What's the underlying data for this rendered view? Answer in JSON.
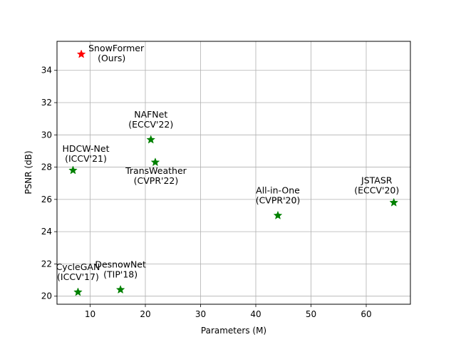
{
  "chart_data": {
    "type": "scatter",
    "title": "",
    "xlabel": "Parameters (M)",
    "ylabel": "PSNR (dB)",
    "xlim": [
      4,
      68
    ],
    "ylim": [
      19.5,
      35.8
    ],
    "xticks": [
      10,
      20,
      30,
      40,
      50,
      60
    ],
    "yticks": [
      20,
      22,
      24,
      26,
      28,
      30,
      32,
      34
    ],
    "grid": true,
    "marker": "star",
    "points": [
      {
        "x": 8.4,
        "y": 35.0,
        "lines": [
          "SnowFormer",
          "(Ours)"
        ],
        "color": "#ff0000",
        "label_pos": "right"
      },
      {
        "x": 21.0,
        "y": 29.7,
        "lines": [
          "NAFNet",
          "(ECCV'22)"
        ],
        "color": "#008000",
        "label_pos": "above"
      },
      {
        "x": 6.9,
        "y": 27.8,
        "lines": [
          "HDCW-Net",
          "(ICCV'21)"
        ],
        "color": "#008000",
        "label_pos": "above-right"
      },
      {
        "x": 21.8,
        "y": 28.3,
        "lines": [
          "TransWeather",
          "(CVPR'22)"
        ],
        "color": "#008000",
        "label_pos": "below"
      },
      {
        "x": 44.0,
        "y": 25.0,
        "lines": [
          "All-in-One",
          "(CVPR'20)"
        ],
        "color": "#008000",
        "label_pos": "above"
      },
      {
        "x": 65.0,
        "y": 25.8,
        "lines": [
          "JSTASR",
          "(ECCV'20)"
        ],
        "color": "#008000",
        "label_pos": "above-left"
      },
      {
        "x": 7.8,
        "y": 20.25,
        "lines": [
          "CycleGAN",
          "(ICCV'17)"
        ],
        "color": "#008000",
        "label_pos": "above"
      },
      {
        "x": 15.5,
        "y": 20.4,
        "lines": [
          "DesnowNet",
          "(TIP'18)"
        ],
        "color": "#008000",
        "label_pos": "above"
      }
    ]
  }
}
